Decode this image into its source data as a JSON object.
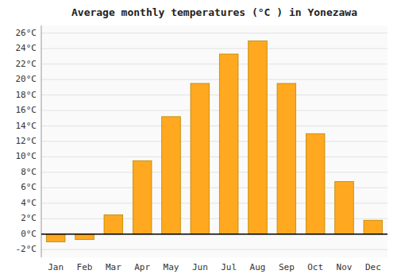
{
  "chart_data": {
    "type": "bar",
    "title": "Average monthly temperatures (°C ) in Yonezawa",
    "categories": [
      "Jan",
      "Feb",
      "Mar",
      "Apr",
      "May",
      "Jun",
      "Jul",
      "Aug",
      "Sep",
      "Oct",
      "Nov",
      "Dec"
    ],
    "values": [
      -1.0,
      -0.7,
      2.5,
      9.5,
      15.2,
      19.5,
      23.3,
      25.0,
      19.5,
      13.0,
      6.8,
      1.8
    ],
    "color": "#FFA820",
    "ylim": [
      -3,
      27
    ],
    "yticks": [
      {
        "value": -2,
        "label": "-2°C"
      },
      {
        "value": 0,
        "label": "0°C"
      },
      {
        "value": 2,
        "label": "2°C"
      },
      {
        "value": 4,
        "label": "4°C"
      },
      {
        "value": 6,
        "label": "6°C"
      },
      {
        "value": 8,
        "label": "8°C"
      },
      {
        "value": 10,
        "label": "10°C"
      },
      {
        "value": 12,
        "label": "12°C"
      },
      {
        "value": 14,
        "label": "14°C"
      },
      {
        "value": 16,
        "label": "16°C"
      },
      {
        "value": 18,
        "label": "18°C"
      },
      {
        "value": 20,
        "label": "20°C"
      },
      {
        "value": 22,
        "label": "22°C"
      },
      {
        "value": 24,
        "label": "24°C"
      },
      {
        "value": 26,
        "label": "26°C"
      }
    ],
    "grid": true
  }
}
